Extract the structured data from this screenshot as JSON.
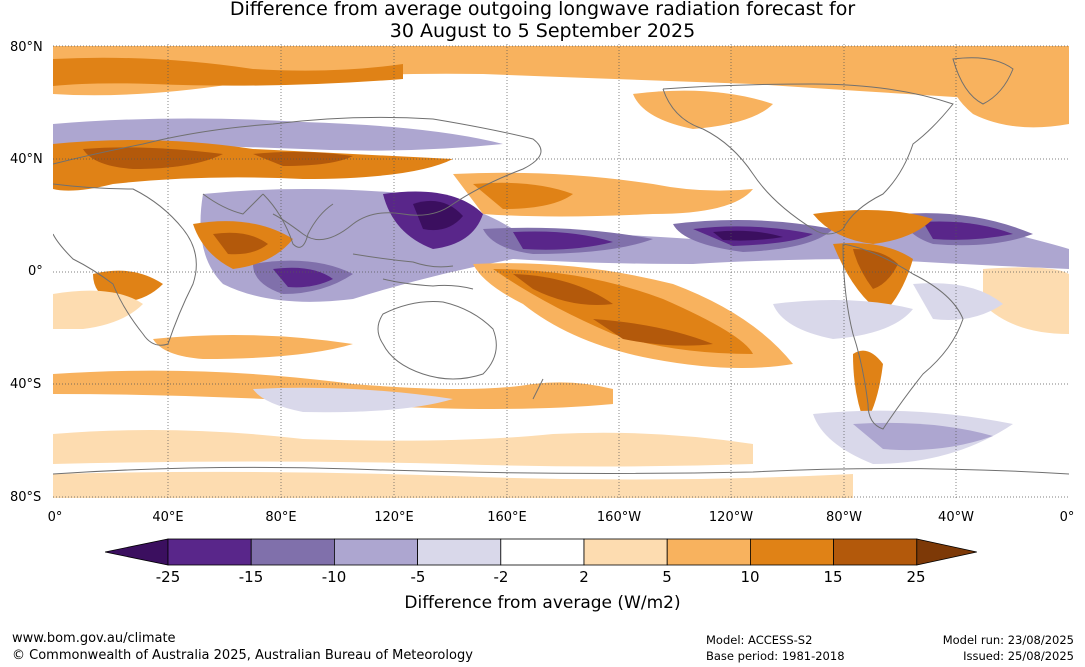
{
  "title_line1": "Difference from average outgoing longwave radiation forecast for",
  "title_line2": "30 August to 5 September 2025",
  "lat_labels": [
    "80°N",
    "40°N",
    "0°",
    "40°S",
    "80°S"
  ],
  "lon_labels": [
    "0°",
    "40°E",
    "80°E",
    "120°E",
    "160°E",
    "160°W",
    "120°W",
    "80°W",
    "40°W",
    "0°"
  ],
  "colorbar": {
    "ticks": [
      "-25",
      "-15",
      "-10",
      "-5",
      "-2",
      "2",
      "5",
      "10",
      "15",
      "25"
    ],
    "colors": [
      "#3b0f5f",
      "#59268a",
      "#8070ab",
      "#ada6d0",
      "#d9d8ea",
      "#ffffff",
      "#fddcb0",
      "#f8b25e",
      "#e08216",
      "#b3590b",
      "#7d3907"
    ],
    "title": "Difference from average (W/m2)"
  },
  "footer": {
    "url": "www.bom.gov.au/climate",
    "copyright": "© Commonwealth of Australia 2025, Australian Bureau of Meteorology",
    "model": "Model: ACCESS-S2",
    "base_period": "Base period: 1981-2018",
    "model_run": "Model run: 23/08/2025",
    "issued": "Issued: 25/08/2025"
  }
}
